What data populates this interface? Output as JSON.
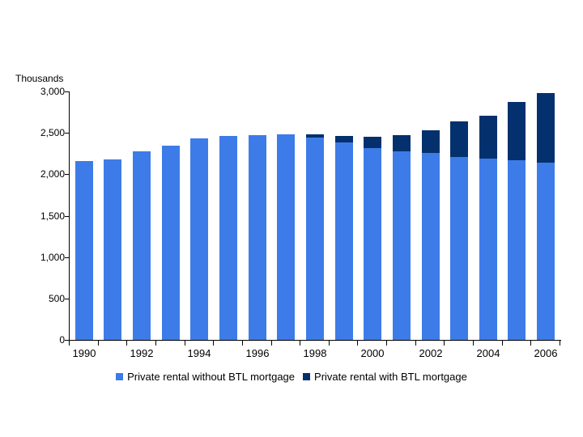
{
  "chart_data": {
    "type": "bar",
    "stacked": true,
    "axis_label": "Thousands",
    "grid": false,
    "legend_position": "bottom",
    "ylim": [
      0,
      3000
    ],
    "y_tick_values": [
      3000,
      2500,
      2000,
      1500,
      1000,
      500,
      0
    ],
    "y_tick_labels": [
      "3,000",
      "2,500",
      "2,000",
      "1,500",
      "1,000",
      "500",
      "0"
    ],
    "categories": [
      "1990",
      "1991",
      "1992",
      "1993",
      "1994",
      "1995",
      "1996",
      "1997",
      "1998",
      "1999",
      "2000",
      "2001",
      "2002",
      "2003",
      "2004",
      "2005",
      "2006"
    ],
    "x_labeled_categories": [
      "1990",
      "1992",
      "1994",
      "1996",
      "1998",
      "2000",
      "2002",
      "2004",
      "2006"
    ],
    "series": [
      {
        "name": "Private rental without BTL mortgage",
        "color": "#3D7CE8",
        "values": [
          2160,
          2180,
          2280,
          2350,
          2430,
          2465,
          2475,
          2485,
          2440,
          2380,
          2320,
          2275,
          2255,
          2210,
          2190,
          2165,
          2145
        ]
      },
      {
        "name": "Private rental with BTL mortgage",
        "color": "#04306E",
        "values": [
          0,
          0,
          0,
          0,
          0,
          0,
          0,
          0,
          45,
          85,
          135,
          200,
          275,
          430,
          520,
          705,
          835
        ]
      }
    ]
  }
}
